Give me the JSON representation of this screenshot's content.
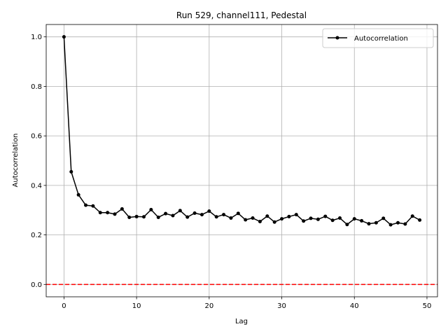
{
  "chart_data": {
    "type": "line",
    "title": "Run 529, channel111, Pedestal",
    "xlabel": "Lag",
    "ylabel": "Autocorrelation",
    "xlim": [
      -2.45,
      51.45
    ],
    "ylim": [
      -0.05,
      1.05
    ],
    "xticks": [
      0,
      10,
      20,
      30,
      40,
      50
    ],
    "yticks": [
      0.0,
      0.2,
      0.4,
      0.6,
      0.8,
      1.0
    ],
    "xtick_labels": [
      "0",
      "10",
      "20",
      "30",
      "40",
      "50"
    ],
    "ytick_labels": [
      "0.0",
      "0.2",
      "0.4",
      "0.6",
      "0.8",
      "1.0"
    ],
    "grid": true,
    "legend_position": "top-right",
    "series": [
      {
        "name": "Autocorrelation",
        "color": "#000000",
        "marker": "circle",
        "x": [
          0,
          1,
          2,
          3,
          4,
          5,
          6,
          7,
          8,
          9,
          10,
          11,
          12,
          13,
          14,
          15,
          16,
          17,
          18,
          19,
          20,
          21,
          22,
          23,
          24,
          25,
          26,
          27,
          28,
          29,
          30,
          31,
          32,
          33,
          34,
          35,
          36,
          37,
          38,
          39,
          40,
          41,
          42,
          43,
          44,
          45,
          46,
          47,
          48,
          49
        ],
        "y": [
          1.0,
          0.455,
          0.362,
          0.32,
          0.317,
          0.29,
          0.29,
          0.284,
          0.305,
          0.271,
          0.274,
          0.273,
          0.302,
          0.271,
          0.286,
          0.278,
          0.298,
          0.272,
          0.288,
          0.282,
          0.296,
          0.273,
          0.282,
          0.268,
          0.287,
          0.261,
          0.268,
          0.254,
          0.276,
          0.252,
          0.265,
          0.274,
          0.282,
          0.256,
          0.267,
          0.263,
          0.275,
          0.259,
          0.268,
          0.242,
          0.265,
          0.257,
          0.245,
          0.249,
          0.267,
          0.241,
          0.249,
          0.244,
          0.276,
          0.26
        ]
      }
    ],
    "reference_lines": [
      {
        "axis": "y",
        "value": 0.0,
        "color": "#ff0000",
        "style": "dashed"
      }
    ]
  }
}
